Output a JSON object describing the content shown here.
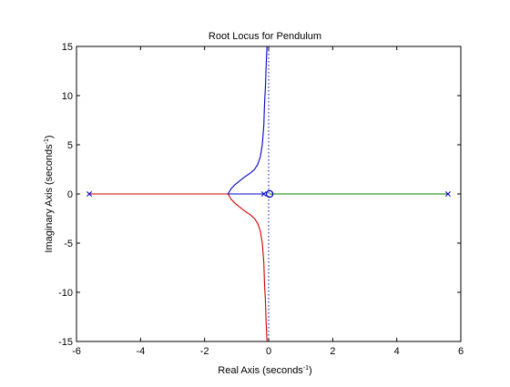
{
  "chart_data": {
    "type": "line",
    "title": "Root Locus for Pendulum",
    "xlabel": "Real Axis (seconds",
    "ylabel": "Imaginary Axis (seconds",
    "axis_unit_exponent": "-1",
    "xlim": [
      -6,
      6
    ],
    "ylim": [
      -15,
      15
    ],
    "xticks": [
      -6,
      -4,
      -2,
      0,
      2,
      4,
      6
    ],
    "yticks": [
      -15,
      -10,
      -5,
      0,
      5,
      10,
      15
    ],
    "grid": false,
    "series": [
      {
        "color": "#0000cc",
        "x": [
          -0.05,
          -0.08,
          -0.1,
          -0.13,
          -0.15,
          -0.2,
          -0.26,
          -0.34,
          -0.44,
          -0.58,
          -0.74,
          -0.9,
          -1.05,
          -1.17,
          -1.27
        ],
        "y": [
          15,
          13,
          11,
          9,
          7,
          5,
          3.8,
          3,
          2.5,
          2.1,
          1.75,
          1.35,
          0.95,
          0.55,
          0
        ]
      },
      {
        "color": "#cc0000",
        "x": [
          -0.05,
          -0.08,
          -0.1,
          -0.13,
          -0.15,
          -0.2,
          -0.26,
          -0.34,
          -0.44,
          -0.58,
          -0.74,
          -0.9,
          -1.05,
          -1.17,
          -1.27
        ],
        "y": [
          -15,
          -13,
          -11,
          -9,
          -7,
          -5,
          -3.8,
          -3,
          -2.5,
          -2.1,
          -1.75,
          -1.35,
          -0.95,
          -0.55,
          0
        ]
      },
      {
        "color": "#0000cc",
        "x": [
          -0.15,
          -1.27
        ],
        "y": [
          0,
          0
        ]
      },
      {
        "color": "#cc0000",
        "x": [
          -1.27,
          -5.6
        ],
        "y": [
          0,
          0
        ]
      },
      {
        "color": "#008000",
        "x": [
          0.03,
          5.6
        ],
        "y": [
          0,
          0
        ]
      }
    ],
    "poles": [
      {
        "x": -5.6,
        "y": 0,
        "color": "#0000cc"
      },
      {
        "x": -0.15,
        "y": 0,
        "color": "#0000cc"
      },
      {
        "x": 5.6,
        "y": 0,
        "color": "#0000cc"
      }
    ],
    "zeros": [
      {
        "x": 0.03,
        "y": 0,
        "color": "#0000cc"
      }
    ],
    "reference_line": {
      "x": 0,
      "color": "#0000cc",
      "style": "dotted"
    }
  }
}
